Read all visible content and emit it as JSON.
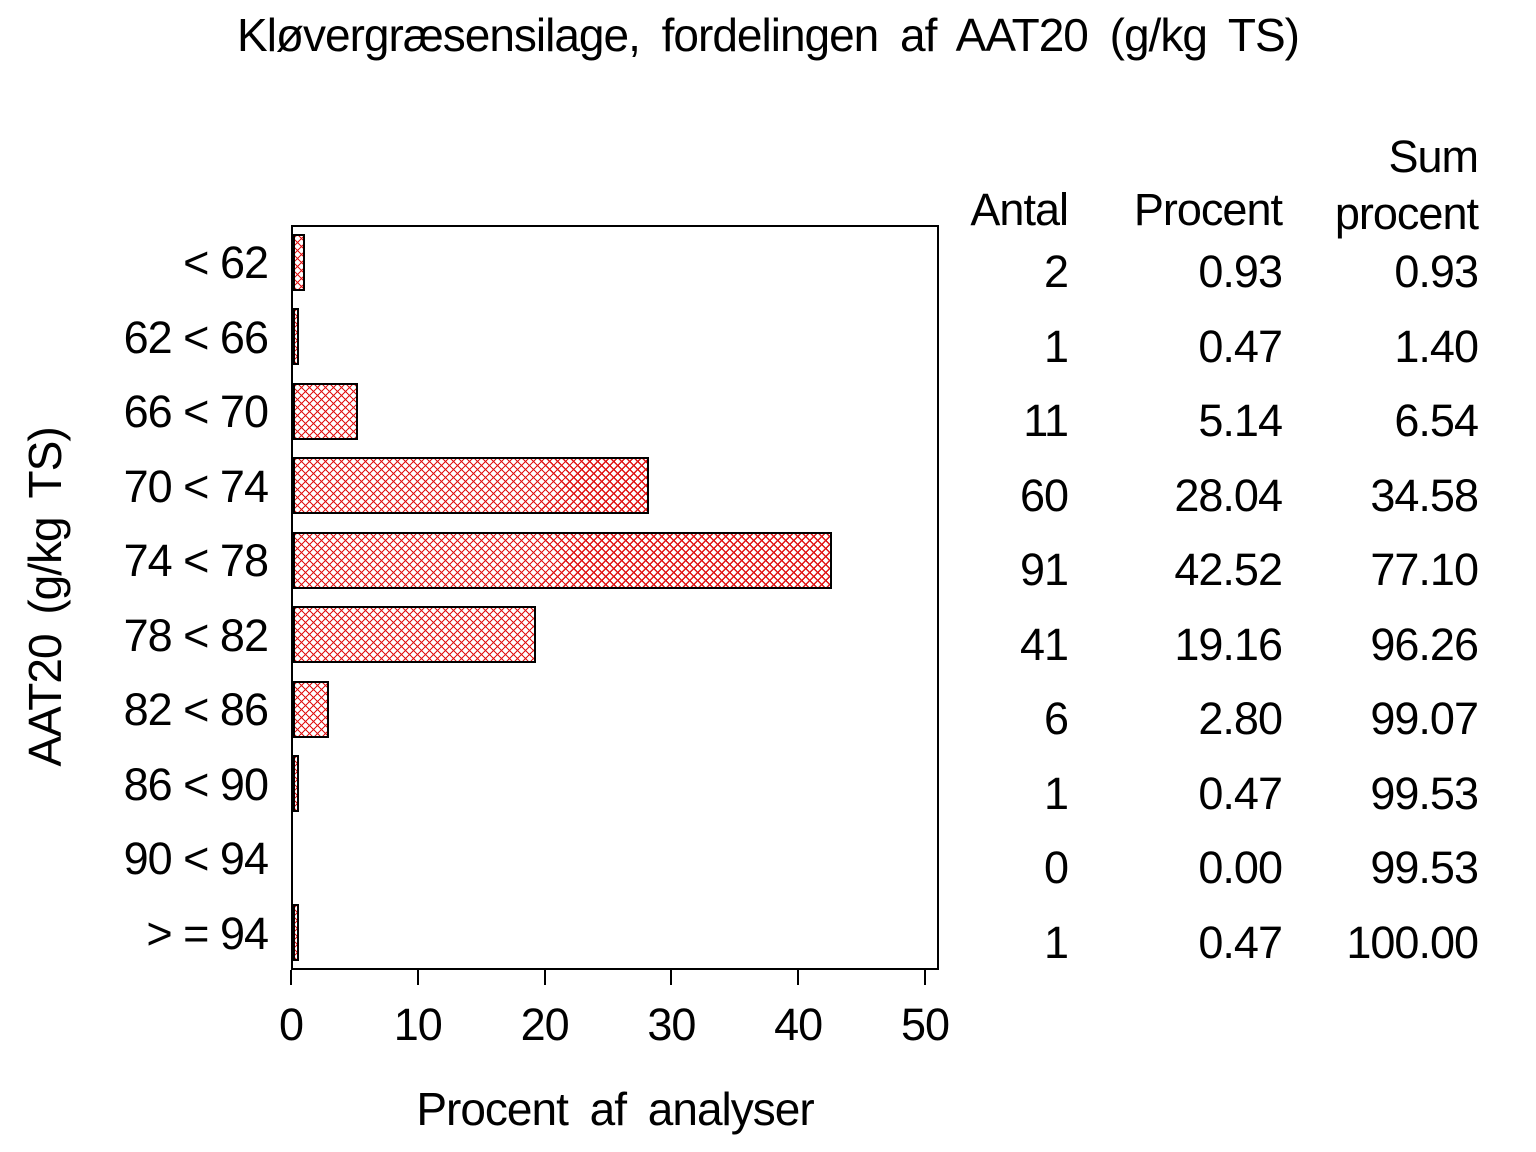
{
  "title": "Kløvergræsensilage, fordelingen af AAT20 (g/kg TS)",
  "table": {
    "headers": {
      "antal": "Antal",
      "procent": "Procent",
      "sum_line1": "Sum",
      "sum_line2": "procent"
    }
  },
  "chart_data": {
    "type": "bar",
    "orientation": "horizontal",
    "title": "Kløvergræsensilage, fordelingen af AAT20 (g/kg TS)",
    "xlabel": "Procent af analyser",
    "ylabel": "AAT20 (g/kg TS)",
    "xlim": [
      0,
      51.1
    ],
    "x_ticks": [
      0,
      10,
      20,
      30,
      40,
      50
    ],
    "grid": false,
    "legend": "none",
    "bar_color": "#e01414",
    "bar_fill_pattern": "cross-hatch",
    "bar_border_color": "#000000",
    "categories": [
      "< 62",
      "62 < 66",
      "66 < 70",
      "70 < 74",
      "74 < 78",
      "78 < 82",
      "82 < 86",
      "86 < 90",
      "90 < 94",
      "> = 94"
    ],
    "series": [
      {
        "name": "Procent af analyser",
        "values": [
          0.93,
          0.47,
          5.14,
          28.04,
          42.52,
          19.16,
          2.8,
          0.47,
          0.0,
          0.47
        ]
      }
    ],
    "rows": [
      {
        "category": "< 62",
        "antal": "2",
        "procent": "0.93",
        "sum_procent": "0.93",
        "value": 0.93
      },
      {
        "category": "62 < 66",
        "antal": "1",
        "procent": "0.47",
        "sum_procent": "1.40",
        "value": 0.47
      },
      {
        "category": "66 < 70",
        "antal": "11",
        "procent": "5.14",
        "sum_procent": "6.54",
        "value": 5.14
      },
      {
        "category": "70 < 74",
        "antal": "60",
        "procent": "28.04",
        "sum_procent": "34.58",
        "value": 28.04
      },
      {
        "category": "74 < 78",
        "antal": "91",
        "procent": "42.52",
        "sum_procent": "77.10",
        "value": 42.52
      },
      {
        "category": "78 < 82",
        "antal": "41",
        "procent": "19.16",
        "sum_procent": "96.26",
        "value": 19.16
      },
      {
        "category": "82 < 86",
        "antal": "6",
        "procent": "2.80",
        "sum_procent": "99.07",
        "value": 2.8
      },
      {
        "category": "86 < 90",
        "antal": "1",
        "procent": "0.47",
        "sum_procent": "99.53",
        "value": 0.47
      },
      {
        "category": "90 < 94",
        "antal": "0",
        "procent": "0.00",
        "sum_procent": "99.53",
        "value": 0.0
      },
      {
        "category": "> = 94",
        "antal": "1",
        "procent": "0.47",
        "sum_procent": "100.00",
        "value": 0.47
      }
    ]
  }
}
